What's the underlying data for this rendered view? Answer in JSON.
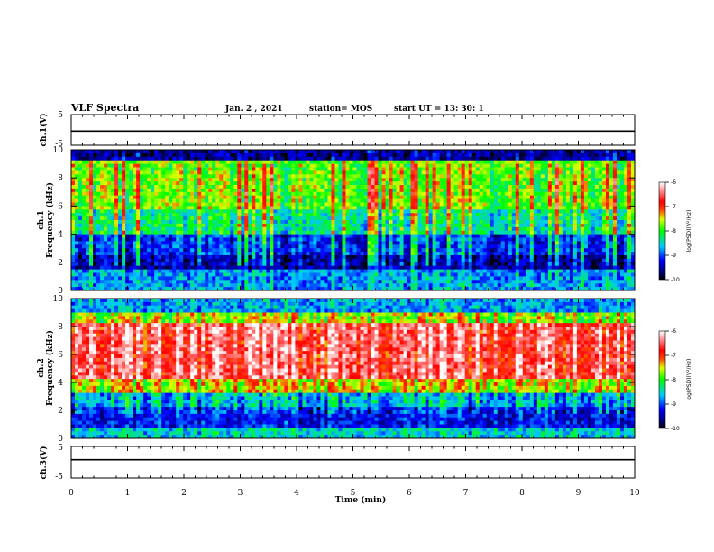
{
  "header": {
    "title": "VLF Spectra",
    "date": "Jan. 2 , 2021",
    "station": "station= MOS",
    "start": "start UT =  13: 30: 1"
  },
  "chart_data": [
    {
      "type": "line",
      "panel": "ch1-waveform",
      "ylabel": "ch.1(V)",
      "yticks": [
        "5",
        "-5"
      ],
      "ylim": [
        -5,
        5
      ],
      "xlim": [
        0,
        10
      ]
    },
    {
      "type": "heatmap",
      "panel": "ch1-spectrogram",
      "ylabel": "ch.1",
      "ylabel2": "Frequency (kHz)",
      "yticks": [
        "0",
        "2",
        "4",
        "6",
        "8",
        "10"
      ],
      "ylim": [
        0,
        10
      ],
      "xlim": [
        0,
        10
      ],
      "colorbar": {
        "label": "log(PSD)(V²/Hz)",
        "ticks": [
          "-6",
          "-7",
          "-8",
          "-9",
          "-10"
        ],
        "range": [
          -10,
          -6
        ]
      }
    },
    {
      "type": "heatmap",
      "panel": "ch2-spectrogram",
      "ylabel": "ch.2",
      "ylabel2": "Frequency (kHz)",
      "yticks": [
        "0",
        "2",
        "4",
        "6",
        "8",
        "10"
      ],
      "ylim": [
        0,
        10
      ],
      "xlim": [
        0,
        10
      ],
      "colorbar": {
        "label": "log(PSD)(V²/Hz)",
        "ticks": [
          "-6",
          "-7",
          "-8",
          "-9",
          "-10"
        ],
        "range": [
          -10,
          -6
        ]
      }
    },
    {
      "type": "line",
      "panel": "ch3-waveform",
      "ylabel": "ch.3(V)",
      "yticks": [
        "5",
        "-5"
      ],
      "ylim": [
        -5,
        5
      ],
      "xlim": [
        0,
        10
      ],
      "xlabel": "Time (min)",
      "xticks": [
        "0",
        "1",
        "2",
        "3",
        "4",
        "5",
        "6",
        "7",
        "8",
        "9",
        "10"
      ]
    }
  ]
}
